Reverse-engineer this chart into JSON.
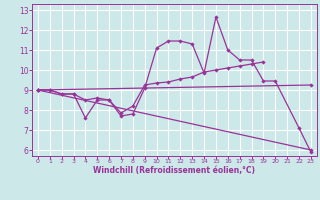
{
  "xlabel": "Windchill (Refroidissement éolien,°C)",
  "background_color": "#cce8e8",
  "grid_color": "#aad4d4",
  "line_color": "#993399",
  "xlim": [
    -0.5,
    23.5
  ],
  "ylim": [
    5.7,
    13.3
  ],
  "yticks": [
    6,
    7,
    8,
    9,
    10,
    11,
    12,
    13
  ],
  "xticks": [
    0,
    1,
    2,
    3,
    4,
    5,
    6,
    7,
    8,
    9,
    10,
    11,
    12,
    13,
    14,
    15,
    16,
    17,
    18,
    19,
    20,
    21,
    22,
    23
  ],
  "line1_x": [
    0,
    1,
    2,
    3,
    4,
    5,
    6,
    7,
    8,
    9,
    10,
    11,
    12,
    13,
    14,
    15,
    16,
    17,
    18,
    19,
    20,
    22,
    23
  ],
  "line1_y": [
    9.0,
    9.0,
    8.8,
    8.8,
    7.6,
    8.5,
    8.5,
    7.7,
    7.8,
    9.1,
    11.1,
    11.45,
    11.45,
    11.3,
    9.85,
    12.65,
    11.0,
    10.5,
    10.5,
    9.45,
    9.45,
    7.1,
    5.9
  ],
  "line2_x": [
    0,
    1,
    2,
    3,
    4,
    5,
    6,
    7,
    8,
    9,
    10,
    11,
    12,
    13,
    14,
    15,
    16,
    17,
    18,
    19
  ],
  "line2_y": [
    9.0,
    9.0,
    8.8,
    8.8,
    8.5,
    8.6,
    8.5,
    7.85,
    8.2,
    9.25,
    9.35,
    9.4,
    9.55,
    9.65,
    9.9,
    10.0,
    10.1,
    10.2,
    10.3,
    10.4
  ],
  "line3_x": [
    0,
    23
  ],
  "line3_y": [
    9.0,
    9.25
  ],
  "line4_x": [
    0,
    23
  ],
  "line4_y": [
    9.0,
    6.0
  ]
}
